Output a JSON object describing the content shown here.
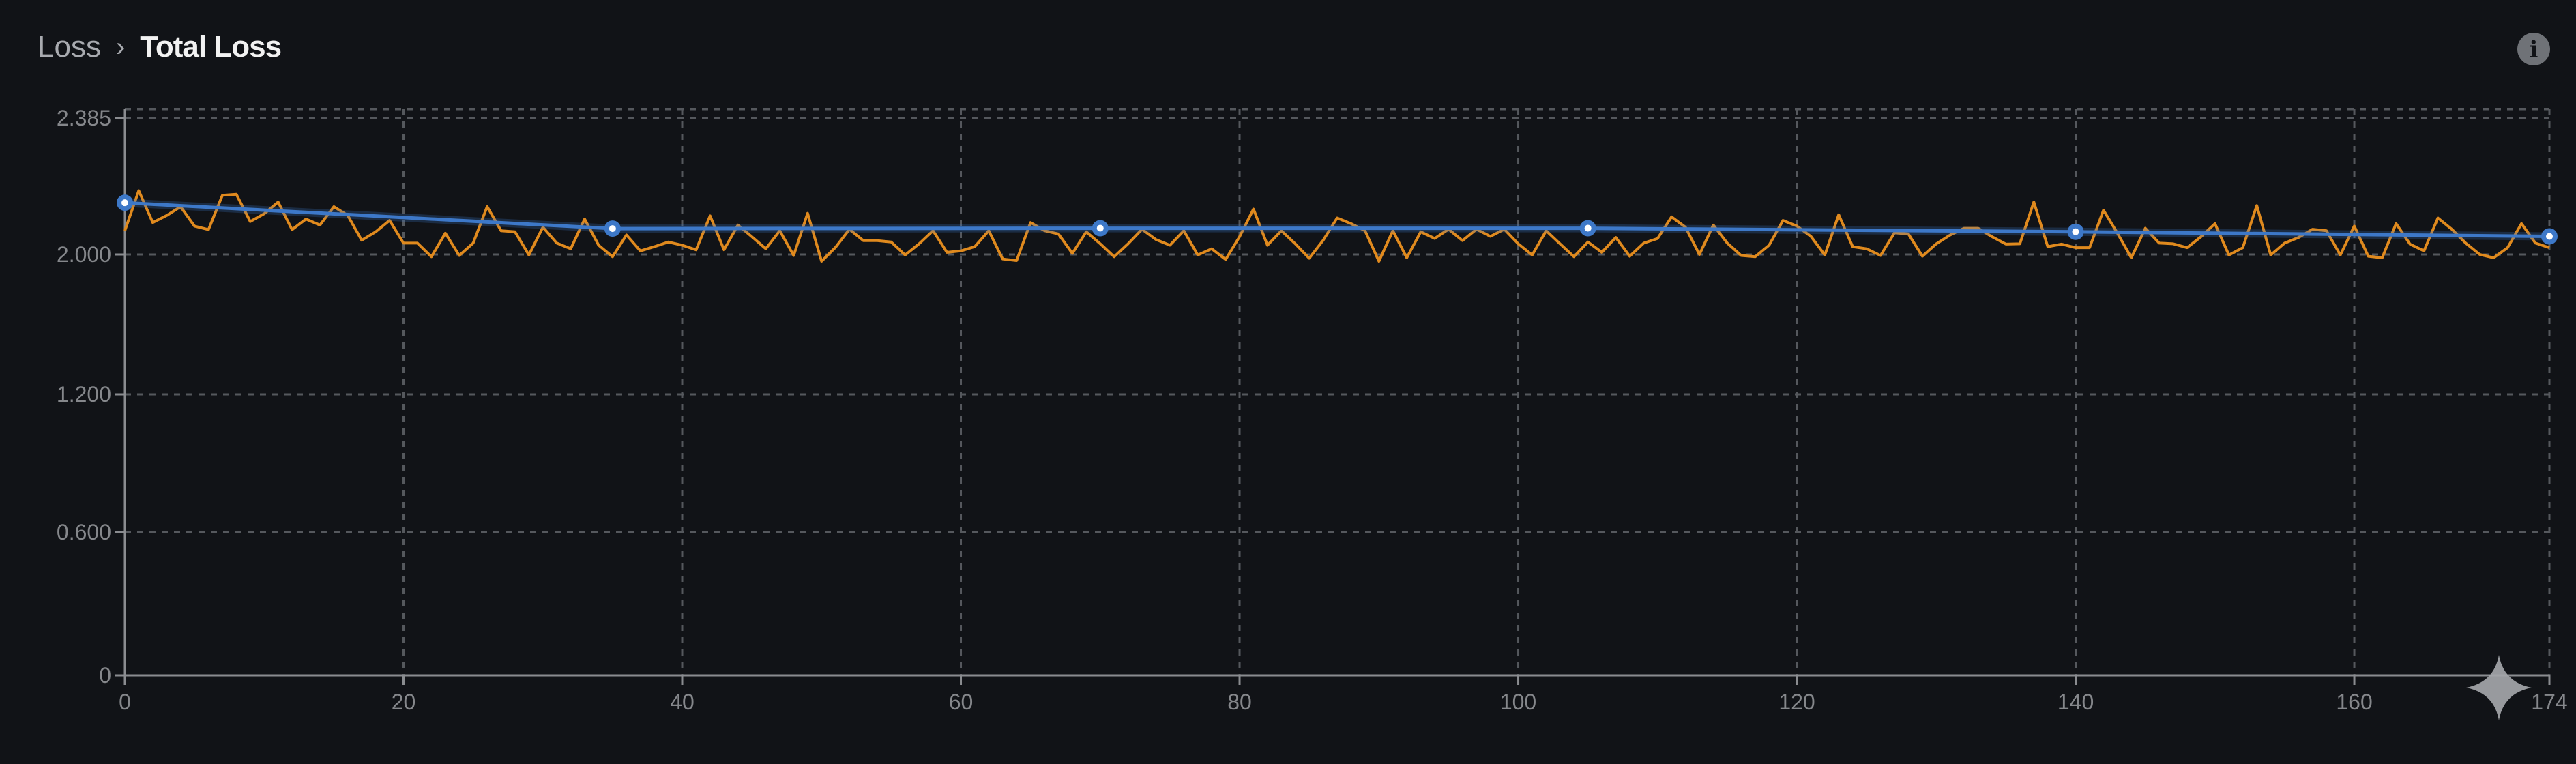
{
  "breadcrumb": {
    "parent": "Loss",
    "separator": "›",
    "current": "Total Loss"
  },
  "icons": {
    "info": "info-icon",
    "sparkle": "sparkle-icon"
  },
  "colors": {
    "background": "#111317",
    "raw_series": "#e08a1e",
    "smoothed_series": "#3d78c8",
    "grid": "#55585d"
  },
  "chart_data": {
    "type": "line",
    "title": "",
    "xlabel": "",
    "ylabel": "",
    "xlim": [
      0,
      174
    ],
    "ylim": [
      0,
      2.385
    ],
    "y_scale": "non-uniform (tick labels evenly spaced)",
    "x_ticks": [
      "0",
      "20",
      "40",
      "60",
      "80",
      "100",
      "120",
      "140",
      "160",
      "174"
    ],
    "y_ticks": [
      "0",
      "0.600",
      "1.200",
      "2.000",
      "2.385"
    ],
    "grid": true,
    "series": [
      {
        "style": "raw",
        "color": "#e08a1e",
        "x_start": 0,
        "x_step": 1,
        "values": [
          2.067,
          2.18,
          2.09,
          2.11,
          2.135,
          2.08,
          2.07,
          2.167,
          2.17,
          2.093,
          2.115,
          2.148,
          2.07,
          2.1,
          2.083,
          2.135,
          2.11,
          2.04,
          2.064,
          2.096,
          2.032,
          2.032,
          1.987,
          2.06,
          1.994,
          2.032,
          2.135,
          2.067,
          2.064,
          1.997,
          2.077,
          2.032,
          2.016,
          2.1,
          2.026,
          1.987,
          2.055,
          2.01,
          2.022,
          2.035,
          2.026,
          2.013,
          2.109,
          2.013,
          2.083,
          2.05,
          2.016,
          2.067,
          1.994,
          2.116,
          1.961,
          2.02,
          2.071,
          2.039,
          2.039,
          2.035,
          1.997,
          2.03,
          2.067,
          2.006,
          2.01,
          2.022,
          2.067,
          1.974,
          1.965,
          2.09,
          2.067,
          2.058,
          2.003,
          2.064,
          2.03,
          1.987,
          2.03,
          2.071,
          2.042,
          2.026,
          2.067,
          1.997,
          2.016,
          1.971,
          2.05,
          2.128,
          2.026,
          2.067,
          2.03,
          1.978,
          2.04,
          2.103,
          2.087,
          2.067,
          1.961,
          2.067,
          1.981,
          2.064,
          2.045,
          2.071,
          2.039,
          2.071,
          2.051,
          2.071,
          2.03,
          1.997,
          2.067,
          2.03,
          1.987,
          2.035,
          2.006,
          2.048,
          1.99,
          2.032,
          2.045,
          2.106,
          2.077,
          2.0,
          2.083,
          2.032,
          1.994,
          1.987,
          2.026,
          2.096,
          2.08,
          2.051,
          1.997,
          2.112,
          2.022,
          2.016,
          1.994,
          2.061,
          2.058,
          1.99,
          2.03,
          2.055,
          2.074,
          2.074,
          2.05,
          2.029,
          2.03,
          2.148,
          2.022,
          2.029,
          2.019,
          2.019,
          2.125,
          2.06,
          1.981,
          2.074,
          2.032,
          2.03,
          2.019,
          2.05,
          2.087,
          1.997,
          2.019,
          2.138,
          1.997,
          2.032,
          2.048,
          2.071,
          2.067,
          1.997,
          2.08,
          1.99,
          1.981,
          2.087,
          2.029,
          2.01,
          2.103,
          2.071,
          2.032,
          2.0,
          1.981,
          2.019,
          2.087,
          2.032,
          2.019
        ]
      },
      {
        "style": "smoothed",
        "color": "#3d78c8",
        "markers": true,
        "x": [
          0,
          35,
          70,
          105,
          140,
          174
        ],
        "values": [
          2.146,
          2.073,
          2.074,
          2.074,
          2.064,
          2.051
        ]
      }
    ]
  }
}
